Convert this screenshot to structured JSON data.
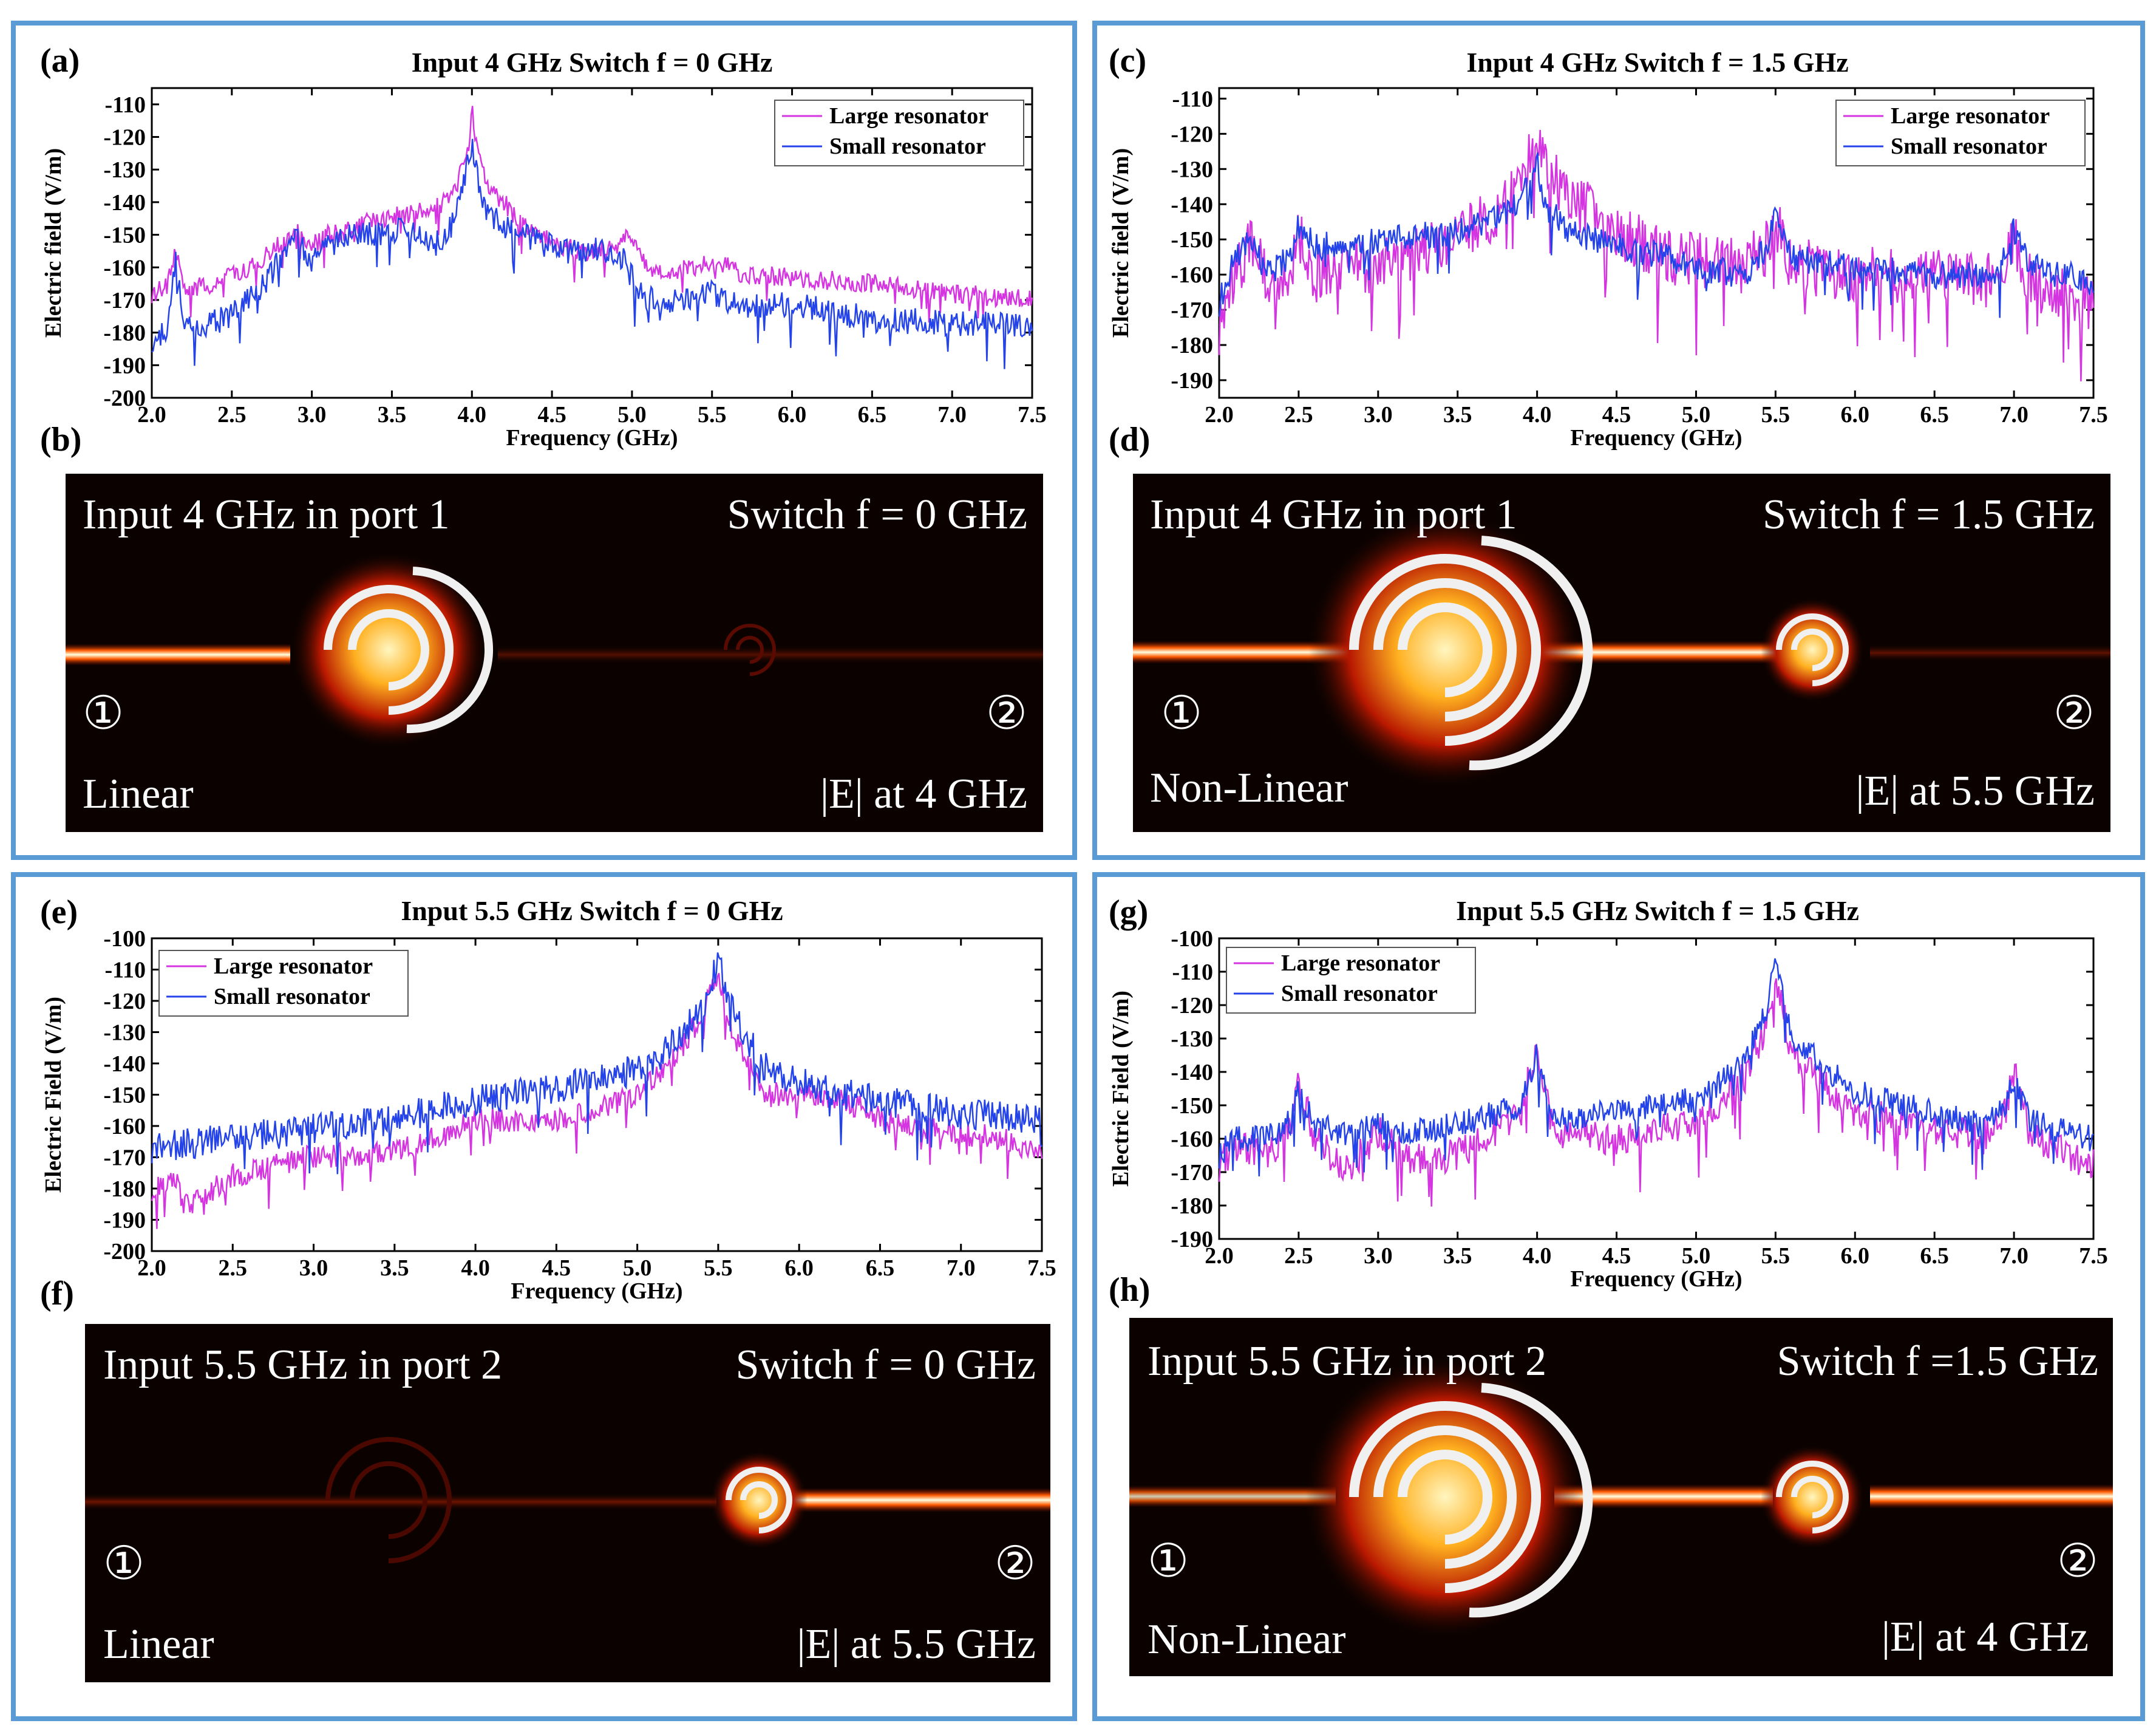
{
  "colors": {
    "large": "#d535e0",
    "small": "#2443e8",
    "panel_border": "#5b9bd5",
    "field_bg": "#0b0200"
  },
  "legend": {
    "large": "Large resonator",
    "small": "Small resonator"
  },
  "chart_data": [
    {
      "id": "a",
      "letter": "(a)",
      "type": "line",
      "title": "Input 4 GHz  Switch f = 0 GHz",
      "xlabel": "Frequency (GHz)",
      "ylabel": "Electric field (V/m)",
      "xlim": [
        2.0,
        7.5
      ],
      "ylim": [
        -200,
        -105
      ],
      "xticks": [
        "2.0",
        "2.5",
        "3.0",
        "3.5",
        "4.0",
        "4.5",
        "5.0",
        "5.5",
        "6.0",
        "6.5",
        "7.0",
        "7.5"
      ],
      "yticks": [
        "-110",
        "-120",
        "-130",
        "-140",
        "-150",
        "-160",
        "-170",
        "-180",
        "-190",
        "-200"
      ],
      "legend_position": "top-right",
      "series": [
        {
          "name": "Large resonator",
          "color_key": "large",
          "x": [
            2.0,
            2.1,
            2.15,
            2.2,
            2.3,
            2.5,
            2.7,
            2.9,
            3.0,
            3.1,
            3.2,
            3.4,
            3.6,
            3.8,
            3.9,
            3.97,
            4.0,
            4.05,
            4.1,
            4.2,
            4.3,
            4.5,
            4.7,
            4.9,
            5.0,
            5.1,
            5.3,
            5.5,
            5.7,
            6.0,
            6.5,
            7.0,
            7.5
          ],
          "y": [
            -168,
            -166,
            -153,
            -167,
            -166,
            -163,
            -157,
            -149,
            -153,
            -150,
            -149,
            -145,
            -144,
            -141,
            -135,
            -126,
            -112,
            -128,
            -136,
            -140,
            -146,
            -152,
            -156,
            -153,
            -150,
            -160,
            -161,
            -158,
            -162,
            -163,
            -165,
            -168,
            -170
          ],
          "jitter": 3
        },
        {
          "name": "Small resonator",
          "color_key": "small",
          "x": [
            2.0,
            2.1,
            2.15,
            2.2,
            2.3,
            2.5,
            2.7,
            2.9,
            3.0,
            3.2,
            3.4,
            3.6,
            3.8,
            3.9,
            3.97,
            4.0,
            4.05,
            4.1,
            4.2,
            4.4,
            4.6,
            4.8,
            4.95,
            5.0,
            5.1,
            5.3,
            5.5,
            5.7,
            6.0,
            6.5,
            7.0,
            7.5
          ],
          "y": [
            -182,
            -180,
            -157,
            -176,
            -178,
            -175,
            -165,
            -150,
            -158,
            -150,
            -150,
            -148,
            -153,
            -145,
            -128,
            -122,
            -138,
            -143,
            -147,
            -152,
            -155,
            -154,
            -158,
            -163,
            -170,
            -170,
            -168,
            -172,
            -171,
            -176,
            -177,
            -178
          ],
          "jitter": 4
        }
      ]
    },
    {
      "id": "c",
      "letter": "(c)",
      "type": "line",
      "title": "Input 4 GHz  Switch f = 1.5 GHz",
      "xlabel": "Frequency (GHz)",
      "ylabel": "Electric field (V/m)",
      "xlim": [
        2.0,
        7.5
      ],
      "ylim": [
        -195,
        -107
      ],
      "xticks": [
        "2.0",
        "2.5",
        "3.0",
        "3.5",
        "4.0",
        "4.5",
        "5.0",
        "5.5",
        "6.0",
        "6.5",
        "7.0",
        "7.5"
      ],
      "yticks": [
        "-110",
        "-120",
        "-130",
        "-140",
        "-150",
        "-160",
        "-170",
        "-180",
        "-190"
      ],
      "legend_position": "top-right",
      "series": [
        {
          "name": "Large resonator",
          "color_key": "large",
          "x": [
            2.0,
            2.1,
            2.2,
            2.3,
            2.45,
            2.5,
            2.6,
            3.0,
            3.5,
            3.8,
            3.95,
            4.0,
            4.05,
            4.2,
            4.5,
            4.8,
            5.0,
            5.3,
            5.45,
            5.5,
            5.6,
            6.0,
            6.5,
            6.9,
            7.0,
            7.1,
            7.5
          ],
          "y": [
            -175,
            -160,
            -150,
            -162,
            -158,
            -148,
            -160,
            -157,
            -150,
            -140,
            -127,
            -118,
            -128,
            -138,
            -147,
            -155,
            -156,
            -158,
            -152,
            -145,
            -157,
            -160,
            -160,
            -162,
            -150,
            -162,
            -168
          ],
          "jitter": 8
        },
        {
          "name": "Small resonator",
          "color_key": "small",
          "x": [
            2.0,
            2.1,
            2.2,
            2.3,
            2.45,
            2.5,
            2.6,
            3.0,
            3.5,
            3.8,
            3.95,
            4.0,
            4.05,
            4.2,
            4.5,
            4.8,
            5.0,
            5.3,
            5.45,
            5.5,
            5.6,
            6.0,
            6.5,
            6.9,
            7.0,
            7.1,
            7.5
          ],
          "y": [
            -168,
            -155,
            -150,
            -160,
            -155,
            -146,
            -152,
            -150,
            -148,
            -143,
            -135,
            -128,
            -140,
            -148,
            -152,
            -155,
            -158,
            -160,
            -152,
            -144,
            -155,
            -158,
            -160,
            -160,
            -147,
            -158,
            -162
          ],
          "jitter": 4
        }
      ]
    },
    {
      "id": "e",
      "letter": "(e)",
      "type": "line",
      "title": "Input 5.5 GHz  Switch f = 0 GHz",
      "xlabel": "Frequency (GHz)",
      "ylabel": "Electric Field (V/m)",
      "xlim": [
        2.0,
        7.5
      ],
      "ylim": [
        -200,
        -100
      ],
      "xticks": [
        "2.0",
        "2.5",
        "3.0",
        "3.5",
        "4.0",
        "4.5",
        "5.0",
        "5.5",
        "6.0",
        "6.5",
        "7.0",
        "7.5"
      ],
      "yticks": [
        "-100",
        "-110",
        "-120",
        "-130",
        "-140",
        "-150",
        "-160",
        "-170",
        "-180",
        "-190",
        "-200"
      ],
      "legend_position": "top-left",
      "series": [
        {
          "name": "Large resonator",
          "color_key": "large",
          "x": [
            2.0,
            2.15,
            2.2,
            2.5,
            2.8,
            3.0,
            3.5,
            3.8,
            4.0,
            4.5,
            5.0,
            5.2,
            5.4,
            5.5,
            5.6,
            5.8,
            6.0,
            6.3,
            6.5,
            7.0,
            7.3,
            7.5
          ],
          "y": [
            -180,
            -178,
            -186,
            -176,
            -172,
            -170,
            -168,
            -163,
            -158,
            -158,
            -150,
            -140,
            -125,
            -110,
            -132,
            -150,
            -150,
            -152,
            -158,
            -162,
            -165,
            -168
          ],
          "jitter": 4
        },
        {
          "name": "Small resonator",
          "color_key": "small",
          "x": [
            2.0,
            2.5,
            3.0,
            3.5,
            3.8,
            4.0,
            4.5,
            5.0,
            5.2,
            5.4,
            5.5,
            5.6,
            5.8,
            6.0,
            6.3,
            6.5,
            7.0,
            7.5
          ],
          "y": [
            -167,
            -164,
            -161,
            -158,
            -154,
            -152,
            -148,
            -142,
            -135,
            -122,
            -108,
            -125,
            -142,
            -146,
            -150,
            -152,
            -156,
            -158
          ],
          "jitter": 5
        }
      ]
    },
    {
      "id": "g",
      "letter": "(g)",
      "type": "line",
      "title": "Input 5.5 GHz  Switch f = 1.5 GHz",
      "xlabel": "Frequency (GHz)",
      "ylabel": "Electric Field (V/m)",
      "xlim": [
        2.0,
        7.5
      ],
      "ylim": [
        -190,
        -100
      ],
      "xticks": [
        "2.0",
        "2.5",
        "3.0",
        "3.5",
        "4.0",
        "4.5",
        "5.0",
        "5.5",
        "6.0",
        "6.5",
        "7.0",
        "7.5"
      ],
      "yticks": [
        "-100",
        "-110",
        "-120",
        "-130",
        "-140",
        "-150",
        "-160",
        "-170",
        "-180",
        "-190"
      ],
      "legend_position": "top-left",
      "series": [
        {
          "name": "Large resonator",
          "color_key": "large",
          "x": [
            2.0,
            2.1,
            2.3,
            2.45,
            2.5,
            2.6,
            2.8,
            3.0,
            3.2,
            3.5,
            3.9,
            4.0,
            4.1,
            4.5,
            5.0,
            5.3,
            5.45,
            5.5,
            5.6,
            6.0,
            6.3,
            6.8,
            6.95,
            7.0,
            7.1,
            7.5
          ],
          "y": [
            -168,
            -162,
            -165,
            -158,
            -142,
            -160,
            -170,
            -158,
            -166,
            -165,
            -152,
            -131,
            -158,
            -160,
            -155,
            -142,
            -125,
            -110,
            -135,
            -152,
            -155,
            -160,
            -152,
            -139,
            -160,
            -168
          ],
          "jitter": 5
        },
        {
          "name": "Small resonator",
          "color_key": "small",
          "x": [
            2.0,
            2.1,
            2.3,
            2.45,
            2.5,
            2.6,
            2.8,
            3.0,
            3.2,
            3.5,
            3.9,
            4.0,
            4.1,
            4.5,
            5.0,
            5.3,
            5.45,
            5.5,
            5.6,
            6.0,
            6.3,
            6.8,
            6.95,
            7.0,
            7.1,
            7.5
          ],
          "y": [
            -165,
            -160,
            -160,
            -155,
            -145,
            -156,
            -158,
            -156,
            -158,
            -156,
            -150,
            -135,
            -155,
            -152,
            -148,
            -138,
            -120,
            -108,
            -130,
            -146,
            -150,
            -156,
            -150,
            -142,
            -155,
            -160
          ],
          "jitter": 4
        }
      ]
    }
  ],
  "fields": [
    {
      "id": "b",
      "letter": "(b)",
      "input": "Input 4 GHz in port 1",
      "switch": "Switch f = 0 GHz",
      "mode": "Linear",
      "measure": "|E| at 4 GHz",
      "port1": "①",
      "port2": "②"
    },
    {
      "id": "d",
      "letter": "(d)",
      "input": "Input 4 GHz in port 1",
      "switch": "Switch f = 1.5 GHz",
      "mode": "Non-Linear",
      "measure": "|E| at 5.5 GHz",
      "port1": "①",
      "port2": "②"
    },
    {
      "id": "f",
      "letter": "(f)",
      "input": "Input 5.5 GHz in port 2",
      "switch": "Switch f = 0 GHz",
      "mode": "Linear",
      "measure": "|E| at 5.5 GHz",
      "port1": "①",
      "port2": "②"
    },
    {
      "id": "h",
      "letter": "(h)",
      "input": "Input 5.5 GHz in port 2",
      "switch": "Switch f =1.5 GHz",
      "mode": "Non-Linear",
      "measure": "|E| at 4 GHz",
      "port1": "①",
      "port2": "②"
    }
  ]
}
